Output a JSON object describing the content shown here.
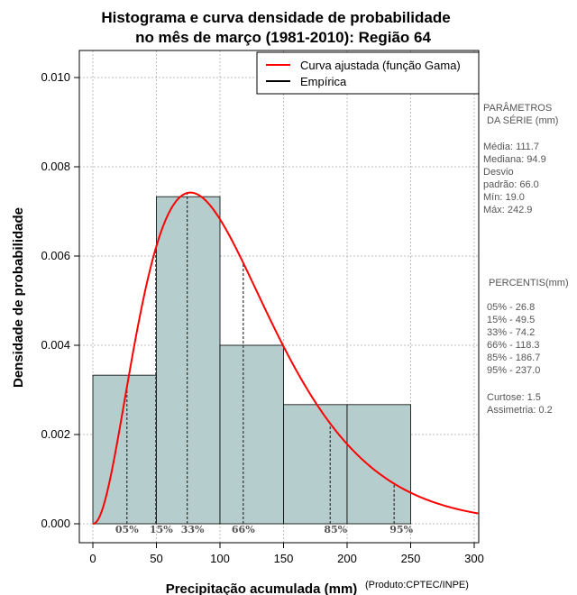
{
  "chart_data": {
    "type": "bar",
    "title_line1": "Histograma e curva densidade de probabilidade",
    "title_line2": "no mês de março (1981-2010): Região 64",
    "xlabel": "Precipitação acumulada (mm)",
    "ylabel": "Densidade de probabilidade",
    "credit": "(Produto:CPTEC/INPE)",
    "xlim": [
      -10,
      303
    ],
    "ylim": [
      -0.0004,
      0.0106
    ],
    "x_ticks": [
      0,
      50,
      100,
      150,
      200,
      250,
      300
    ],
    "y_ticks": [
      0.0,
      0.002,
      0.004,
      0.006,
      0.008,
      0.01
    ],
    "y_tick_labels": [
      "0.000",
      "0.002",
      "0.004",
      "0.006",
      "0.008",
      "0.010"
    ],
    "bins": [
      {
        "from": 0,
        "to": 50,
        "density": 0.00333
      },
      {
        "from": 50,
        "to": 100,
        "density": 0.00733
      },
      {
        "from": 100,
        "to": 150,
        "density": 0.004
      },
      {
        "from": 150,
        "to": 200,
        "density": 0.00267
      },
      {
        "from": 200,
        "to": 250,
        "density": 0.00267
      }
    ],
    "bar_color": "#b5cdcd",
    "curve": {
      "name": "Curva ajustada (função Gama)",
      "color": "#ff0000",
      "shape": 3.2,
      "scale": 34.9
    },
    "empirical": {
      "name": "Empírica",
      "color": "#000000"
    },
    "percentile_marks": [
      {
        "label": "05%",
        "value": 26.8
      },
      {
        "label": "15%",
        "value": 49.5
      },
      {
        "label": "33%",
        "value": 74.2
      },
      {
        "label": "66%",
        "value": 118.3
      },
      {
        "label": "85%",
        "value": 186.7
      },
      {
        "label": "95%",
        "value": 237.0
      }
    ]
  },
  "side_panel": {
    "params_title_1": "PARÂMETROS",
    "params_title_2": "DA SÉRIE (mm)",
    "params": [
      "Média:  111.7",
      "Mediana:  94.9",
      "Desvio",
      "padrão:  66.0",
      "Mín:  19.0",
      "Máx:  242.9"
    ],
    "percentis_title": "PERCENTIS(mm)",
    "percentis": [
      "05% -  26.8",
      "15% -  49.5",
      "33% -  74.2",
      "66% -  118.3",
      "85% -  186.7",
      "95% -  237.0"
    ],
    "curtose": "Curtose:  1.5",
    "assimetria": "Assimetria:  0.2"
  }
}
